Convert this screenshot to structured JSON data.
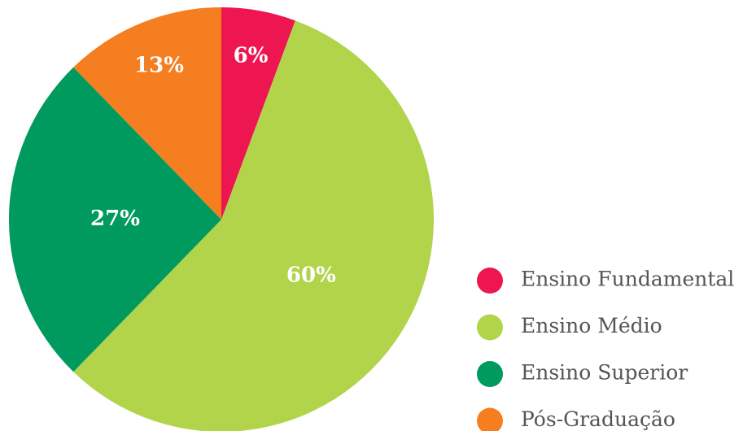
{
  "chart_data": {
    "type": "pie",
    "categories": [
      "Ensino Fundamental",
      "Ensino Médio",
      "Ensino Superior",
      "Pós-Graduação"
    ],
    "values": [
      6,
      60,
      27,
      13
    ],
    "value_labels": [
      "6%",
      "60%",
      "27%",
      "13%"
    ],
    "colors": [
      "#ed1651",
      "#b2d44b",
      "#009a5e",
      "#f47e20"
    ],
    "legend": "right"
  }
}
